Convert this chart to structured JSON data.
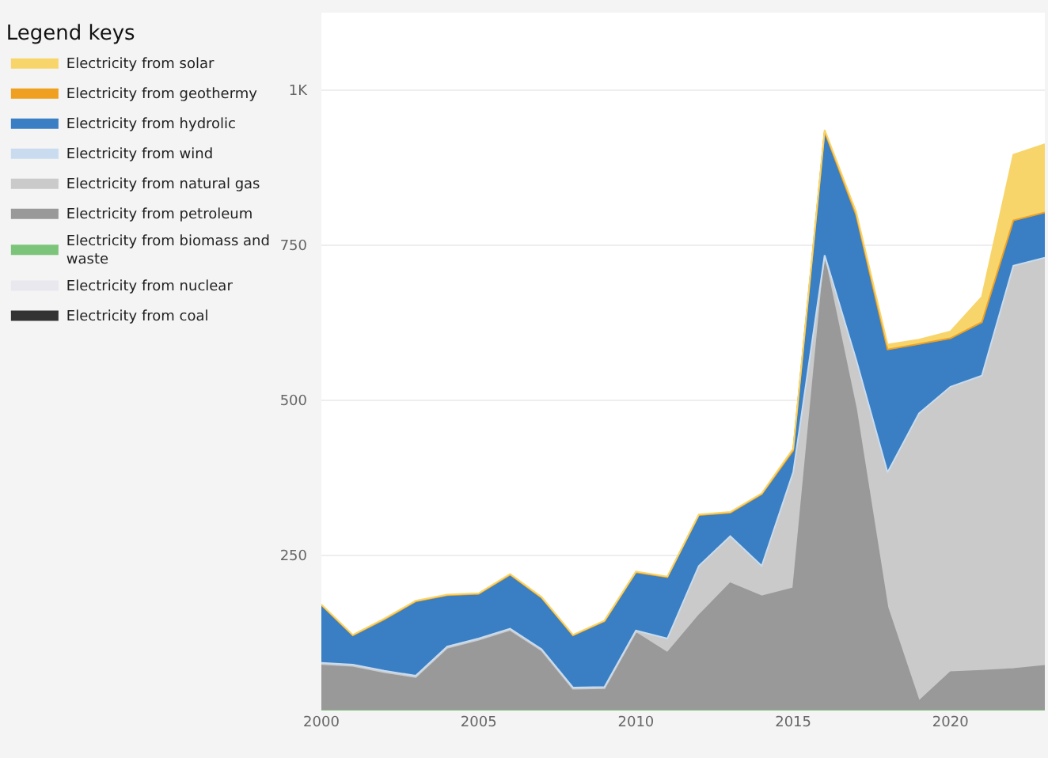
{
  "chart_data": {
    "type": "area",
    "stacked": true,
    "legend_title": "Legend keys",
    "legend": "left",
    "grid": "y",
    "x": [
      2000,
      2001,
      2002,
      2003,
      2004,
      2005,
      2006,
      2007,
      2008,
      2009,
      2010,
      2011,
      2012,
      2013,
      2014,
      2015,
      2016,
      2017,
      2018,
      2019,
      2020,
      2021,
      2022,
      2023
    ],
    "xlim": [
      2000,
      2023
    ],
    "xticks": [
      2000,
      2005,
      2010,
      2015,
      2020
    ],
    "ylim": [
      0,
      1125
    ],
    "yticks": [
      250,
      500,
      750,
      {
        "value": 1000,
        "label": "1K"
      }
    ],
    "series": [
      {
        "name": "Electricity from coal",
        "color": "#333333",
        "values": [
          null,
          null,
          null,
          null,
          null,
          null,
          null,
          null,
          null,
          null,
          null,
          null,
          null,
          null,
          null,
          null,
          null,
          null,
          null,
          null,
          null,
          null,
          null,
          null
        ]
      },
      {
        "name": "Electricity from nuclear",
        "color": "#e8e8ee",
        "values": [
          null,
          null,
          null,
          null,
          null,
          null,
          null,
          null,
          null,
          null,
          null,
          null,
          null,
          null,
          null,
          null,
          null,
          null,
          null,
          null,
          null,
          null,
          null,
          null
        ]
      },
      {
        "name": "Electricity from biomass and waste",
        "color": "#7cc47a",
        "values": [
          null,
          null,
          null,
          null,
          null,
          null,
          null,
          null,
          null,
          null,
          null,
          null,
          null,
          null,
          null,
          null,
          null,
          null,
          null,
          null,
          null,
          null,
          null,
          null
        ]
      },
      {
        "name": "Electricity from petroleum",
        "color": "#999999",
        "values": [
          75,
          72,
          62,
          54,
          101,
          114,
          130,
          97,
          35,
          36,
          125,
          93,
          153,
          205,
          184,
          197,
          728,
          486,
          166,
          15,
          62,
          64,
          67,
          72
        ]
      },
      {
        "name": "Electricity from natural gas",
        "color": "#cacaca",
        "values": [
          0,
          0,
          0,
          0,
          0,
          0,
          0,
          0,
          0,
          0,
          2,
          21,
          78,
          74,
          47,
          185,
          4,
          78,
          216,
          462,
          458,
          474,
          648,
          656
        ]
      },
      {
        "name": "Electricity from wind",
        "color": "#c9dcef",
        "values": [
          2,
          2,
          2,
          2,
          2,
          2,
          2,
          2,
          2,
          2,
          2,
          2,
          2,
          2,
          2,
          2,
          2,
          2,
          2,
          2,
          2,
          2,
          2,
          2
        ]
      },
      {
        "name": "Electricity from hydrolic",
        "color": "#3a7fc4",
        "values": [
          91,
          45,
          81,
          118,
          81,
          70,
          85,
          81,
          82,
          104,
          92,
          97,
          80,
          36,
          114,
          33,
          197,
          231,
          196,
          110,
          76,
          84,
          71,
          71
        ]
      },
      {
        "name": "Electricity from geothermy",
        "color": "#f0a020",
        "values": [
          2,
          2,
          2,
          2,
          2,
          2,
          2,
          2,
          2,
          2,
          2,
          2,
          2,
          2,
          2,
          2,
          2,
          2,
          2,
          2,
          2,
          2,
          2,
          2
        ]
      },
      {
        "name": "Electricity from solar",
        "color": "#f7d56b",
        "values": [
          1,
          1,
          1,
          1,
          1,
          1,
          1,
          1,
          1,
          1,
          1,
          1,
          1,
          1,
          1,
          3,
          3,
          5,
          8,
          7,
          11,
          41,
          106,
          110
        ]
      }
    ]
  }
}
